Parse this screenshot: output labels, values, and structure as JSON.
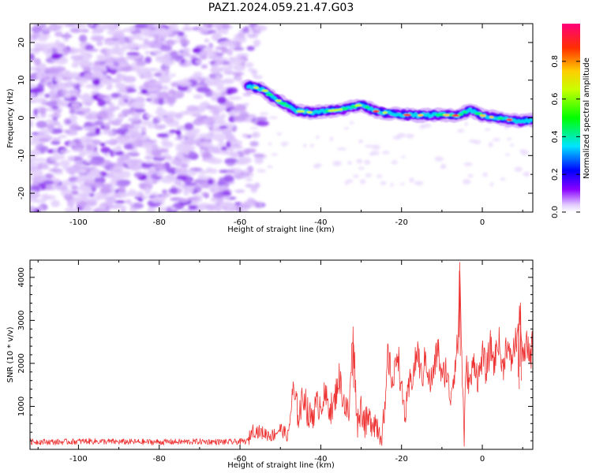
{
  "title": "PAZ1.2024.059.21.47.G03",
  "chart_data": [
    {
      "type": "heatmap",
      "xlabel": "Height of straight line (km)",
      "ylabel": "Frequency (Hz)",
      "xlim": [
        -112,
        12.5
      ],
      "ylim": [
        -25,
        25
      ],
      "x_ticks": [
        -100,
        -80,
        -60,
        -40,
        -20,
        0
      ],
      "y_ticks": [
        -20,
        -10,
        0,
        10,
        20
      ],
      "colorbar": {
        "label": "Normalized spectral amplitude",
        "range": [
          0,
          1
        ],
        "ticks": [
          0.0,
          0.2,
          0.4,
          0.6,
          0.8
        ]
      },
      "signal_track": [
        {
          "x": -58,
          "y": 8.6
        },
        {
          "x": -54,
          "y": 7.4
        },
        {
          "x": -52,
          "y": 5.5
        },
        {
          "x": -49,
          "y": 3.6
        },
        {
          "x": -46,
          "y": 1.8
        },
        {
          "x": -42,
          "y": 1.4
        },
        {
          "x": -38,
          "y": 1.8
        },
        {
          "x": -34,
          "y": 2.4
        },
        {
          "x": -30,
          "y": 3.5
        },
        {
          "x": -26,
          "y": 1.6
        },
        {
          "x": -22,
          "y": 1.1
        },
        {
          "x": -18,
          "y": 0.7
        },
        {
          "x": -14,
          "y": 0.7
        },
        {
          "x": -10,
          "y": 0.8
        },
        {
          "x": -6,
          "y": 0.6
        },
        {
          "x": -3,
          "y": 2.2
        },
        {
          "x": 0,
          "y": 0.6
        },
        {
          "x": 3,
          "y": 0.1
        },
        {
          "x": 6,
          "y": -0.4
        },
        {
          "x": 9,
          "y": -0.9
        },
        {
          "x": 12,
          "y": -0.7
        }
      ]
    },
    {
      "type": "line",
      "xlabel": "Height of straight line (km)",
      "ylabel": "SNR (10 * v/v)",
      "xlim": [
        -112,
        12.5
      ],
      "ylim": [
        0,
        4400
      ],
      "x_ticks": [
        -100,
        -80,
        -60,
        -40,
        -20,
        0
      ],
      "y_ticks": [
        1000,
        2000,
        3000,
        4000
      ],
      "series": [
        {
          "color": "#ee3333",
          "x": [
            -112,
            -105,
            -98,
            -90,
            -80,
            -70,
            -62,
            -58,
            -57,
            -55,
            -52,
            -50,
            -48,
            -47,
            -45.5,
            -44,
            -43,
            -41,
            -39,
            -37,
            -35.5,
            -34,
            -33,
            -32,
            -31,
            -30,
            -29,
            -27,
            -25,
            -24,
            -23.5,
            -22,
            -21,
            -20,
            -19,
            -18,
            -17,
            -16,
            -15,
            -14,
            -13,
            -12,
            -11,
            -10,
            -9,
            -8,
            -7,
            -6,
            -5.6,
            -5,
            -4.5,
            -4,
            -3,
            -2,
            -1,
            0,
            1,
            2,
            3,
            4,
            5,
            6,
            7,
            8,
            9,
            9.5,
            10,
            11,
            12,
            12.5
          ],
          "y": [
            180,
            170,
            190,
            175,
            170,
            180,
            170,
            190,
            450,
            400,
            320,
            480,
            300,
            1350,
            800,
            1300,
            700,
            1000,
            1200,
            900,
            1700,
            1000,
            800,
            2850,
            600,
            1000,
            600,
            700,
            400,
            800,
            2200,
            1500,
            2400,
            1300,
            800,
            1500,
            1800,
            2300,
            1600,
            2200,
            1500,
            1800,
            2400,
            1600,
            1900,
            1200,
            1800,
            2500,
            4350,
            1800,
            300,
            1900,
            1500,
            2100,
            1600,
            2200,
            1800,
            2400,
            2000,
            2600,
            1800,
            2500,
            2000,
            2400,
            2800,
            3200,
            2000,
            2400,
            2200,
            2500
          ]
        }
      ]
    }
  ]
}
